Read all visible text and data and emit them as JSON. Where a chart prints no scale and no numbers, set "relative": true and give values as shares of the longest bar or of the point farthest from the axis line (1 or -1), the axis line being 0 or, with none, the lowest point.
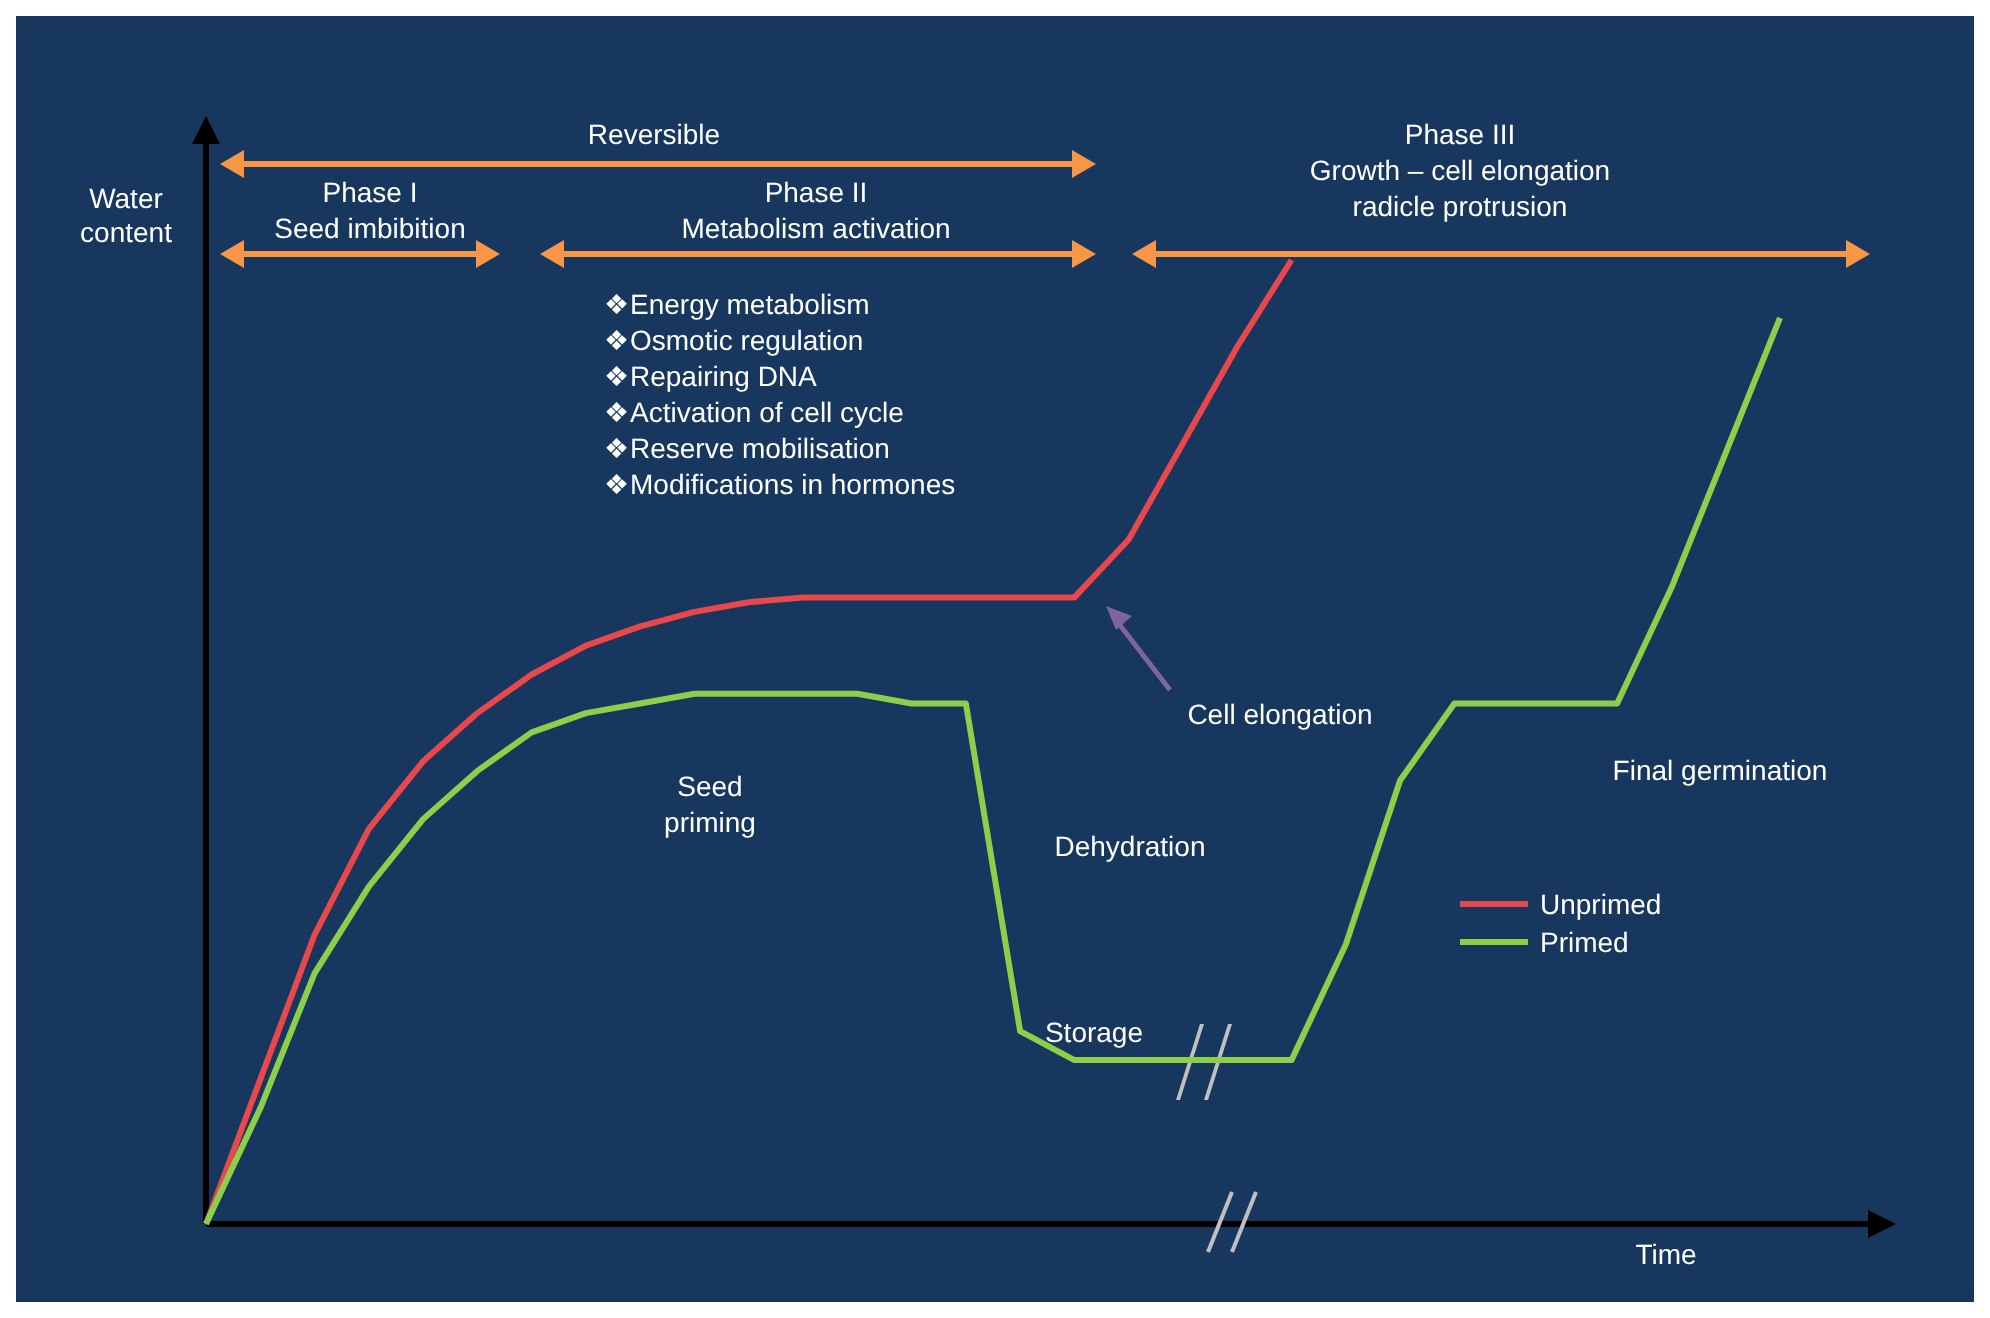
{
  "chart_data": {
    "type": "line",
    "relative": true,
    "xlabel": "Time",
    "ylabel": "Water content",
    "legend": "right",
    "marker": "none",
    "line_style": "solid",
    "categories": [
      null,
      null,
      null,
      null,
      null,
      null,
      null,
      null,
      null,
      null,
      null,
      null,
      null,
      null,
      null,
      null,
      null,
      null,
      null,
      null,
      null,
      null,
      null,
      null,
      null,
      null,
      null,
      null,
      null,
      null
    ],
    "series": [
      {
        "name": "Unprimed",
        "color": "#e8474b",
        "values": [
          0,
          0.15,
          0.3,
          0.41,
          0.48,
          0.53,
          0.57,
          0.6,
          0.62,
          0.635,
          0.645,
          0.65,
          0.65,
          0.65,
          0.65,
          0.65,
          0.65,
          0.71,
          0.81,
          0.91,
          1.0,
          null,
          null,
          null,
          null,
          null,
          null,
          null,
          null,
          null
        ]
      },
      {
        "name": "Primed",
        "color": "#8cd04a",
        "values": [
          0,
          0.12,
          0.26,
          0.35,
          0.42,
          0.47,
          0.51,
          0.53,
          0.54,
          0.55,
          0.55,
          0.55,
          0.55,
          0.54,
          0.54,
          0.2,
          0.17,
          0.17,
          0.17,
          0.17,
          0.17,
          0.29,
          0.46,
          0.54,
          0.54,
          0.54,
          0.54,
          0.66,
          0.8,
          0.94
        ]
      }
    ],
    "annotations": [
      "Reversible",
      "Phase I\nSeed imbibition",
      "Phase II\nMetabolism activation",
      "❖Energy metabolism\n❖Osmotic regulation\n❖Repairing DNA\n❖Activation of cell cycle\n❖Reserve mobilisation\n❖Modifications in hormones",
      "Phase III\nGrowth – cell elongation\nradicle protrusion",
      "Cell elongation",
      "Seed\npriming",
      "Dehydration",
      "Storage",
      "Final germination"
    ]
  }
}
